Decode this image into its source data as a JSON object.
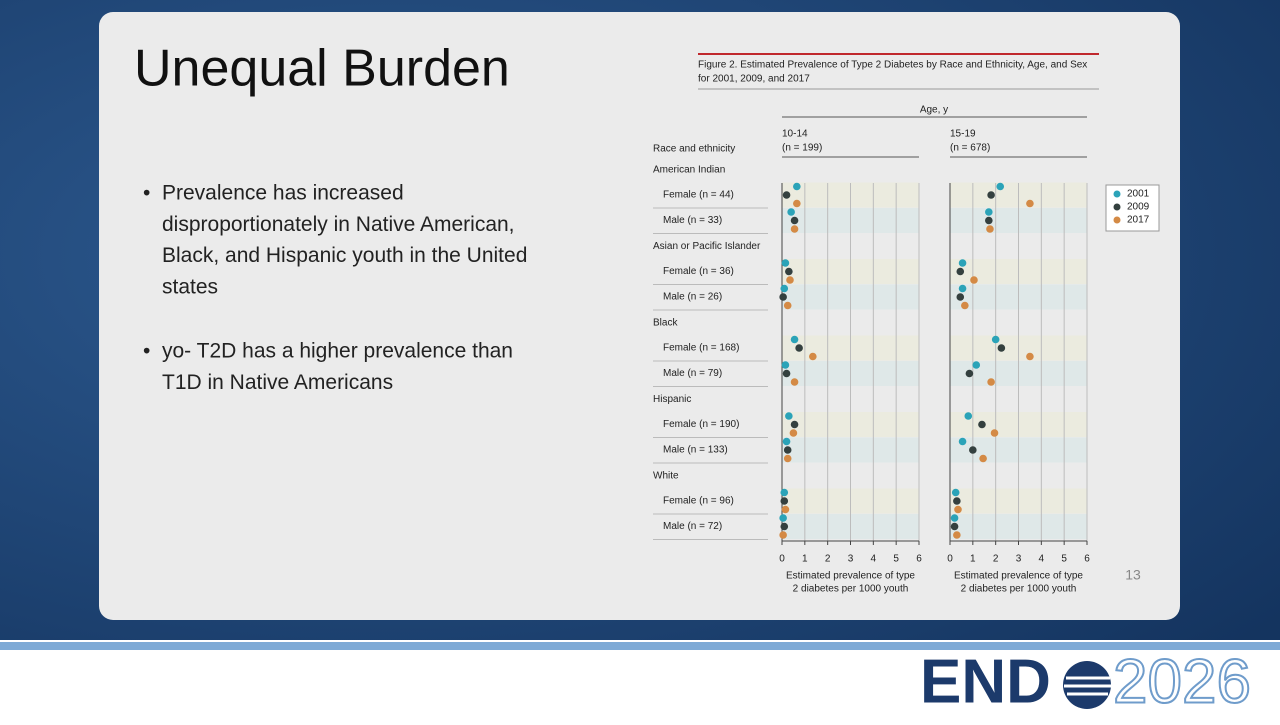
{
  "slide": {
    "title": "Unequal Burden",
    "bullets": [
      [
        "Prevalence has increased",
        "disproportionately in Native American,",
        "Black, and Hispanic youth in the United",
        "states"
      ],
      [
        "yo- T2D has a higher prevalence than",
        "T1D in Native Americans"
      ]
    ],
    "page_number": "13"
  },
  "logo": {
    "left": "END",
    "right": "2026"
  },
  "figure": {
    "title": [
      "Figure 2. Estimated Prevalence of Type 2 Diabetes by Race and Ethnicity, Age, and Sex",
      "for 2001, 2009, and 2017"
    ],
    "column_header": "Age, y",
    "row_header": "Race and ethnicity",
    "groups": [
      {
        "name": "American Indian",
        "categories": [
          "Female (n = 44)",
          "Male (n = 33)"
        ]
      },
      {
        "name": "Asian or Pacific Islander",
        "categories": [
          "Female (n = 36)",
          "Male (n = 26)"
        ]
      },
      {
        "name": "Black",
        "categories": [
          "Female (n = 168)",
          "Male (n = 79)"
        ]
      },
      {
        "name": "Hispanic",
        "categories": [
          "Female (n = 190)",
          "Male (n = 133)"
        ]
      },
      {
        "name": "White",
        "categories": [
          "Female (n = 96)",
          "Male (n = 72)"
        ]
      }
    ]
  },
  "chart_data": [
    {
      "type": "dot",
      "title": "10-14",
      "subtitle": "(n = 199)",
      "xlabel": [
        "Estimated prevalence of type",
        "2 diabetes per 1000 youth"
      ],
      "xlim": [
        0,
        6
      ],
      "xticks": [
        0,
        1,
        2,
        3,
        4,
        5,
        6
      ],
      "grid": true,
      "series": [
        {
          "color": "#2ba3b8",
          "values": [
            0.65,
            0.4,
            0.15,
            0.1,
            0.55,
            0.15,
            0.3,
            0.2,
            0.1,
            0.05
          ]
        },
        {
          "color": "#34403f",
          "values": [
            0.2,
            0.55,
            0.3,
            0.05,
            0.75,
            0.2,
            0.55,
            0.25,
            0.1,
            0.1
          ]
        },
        {
          "color": "#d48a45",
          "values": [
            0.65,
            0.55,
            0.35,
            0.25,
            1.35,
            0.55,
            0.5,
            0.25,
            0.15,
            0.05
          ]
        }
      ]
    },
    {
      "type": "dot",
      "title": "15-19",
      "subtitle": "(n = 678)",
      "xlabel": [
        "Estimated prevalence of type",
        "2 diabetes per 1000 youth"
      ],
      "xlim": [
        0,
        6
      ],
      "xticks": [
        0,
        1,
        2,
        3,
        4,
        5,
        6
      ],
      "grid": true,
      "legend": "right",
      "series": [
        {
          "name": "2001",
          "color": "#2ba3b8",
          "values": [
            2.2,
            1.7,
            0.55,
            0.55,
            2.0,
            1.15,
            0.8,
            0.55,
            0.25,
            0.2
          ]
        },
        {
          "name": "2009",
          "color": "#34403f",
          "values": [
            1.8,
            1.7,
            0.45,
            0.45,
            2.25,
            0.85,
            1.4,
            1.0,
            0.3,
            0.2
          ]
        },
        {
          "name": "2017",
          "color": "#d48a45",
          "values": [
            3.5,
            1.75,
            1.05,
            0.65,
            3.5,
            1.8,
            1.95,
            1.45,
            0.35,
            0.3
          ]
        }
      ]
    }
  ]
}
